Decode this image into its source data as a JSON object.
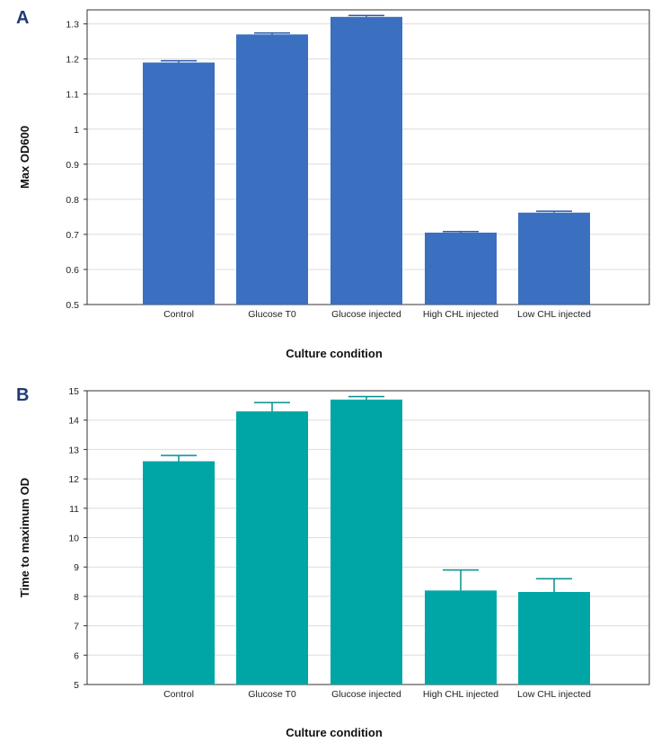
{
  "chart_data": [
    {
      "type": "bar",
      "panel": "A",
      "categories": [
        "Control",
        "Glucose T0",
        "Glucose injected",
        "High CHL injected",
        "Low CHL injected"
      ],
      "values": [
        1.19,
        1.27,
        1.32,
        0.705,
        0.762
      ],
      "errors": [
        0.005,
        0.004,
        0.004,
        0.003,
        0.004
      ],
      "title": "",
      "xlabel": "Culture condition",
      "ylabel": "Max OD600",
      "ylim": [
        0.5,
        1.34
      ],
      "yticks": [
        "0.5",
        "0.6",
        "0.7",
        "0.8",
        "0.9",
        "1",
        "1.1",
        "1.2",
        "1.3"
      ],
      "ytick_values": [
        0.5,
        0.6,
        0.7,
        0.8,
        0.9,
        1.0,
        1.1,
        1.2,
        1.3
      ],
      "grid": true,
      "bar_color": "#3b6fbf"
    },
    {
      "type": "bar",
      "panel": "B",
      "categories": [
        "Control",
        "Glucose T0",
        "Glucose injected",
        "High CHL injected",
        "Low CHL injected"
      ],
      "values": [
        12.6,
        14.3,
        14.7,
        8.2,
        8.15
      ],
      "errors": [
        0.2,
        0.3,
        0.1,
        0.7,
        0.45
      ],
      "title": "",
      "xlabel": "Culture condition",
      "ylabel": "Time to maximum OD",
      "ylim": [
        5,
        15
      ],
      "yticks": [
        "5",
        "6",
        "7",
        "8",
        "9",
        "10",
        "11",
        "12",
        "13",
        "14",
        "15"
      ],
      "ytick_values": [
        5,
        6,
        7,
        8,
        9,
        10,
        11,
        12,
        13,
        14,
        15
      ],
      "grid": true,
      "bar_color": "#00a6a6"
    }
  ]
}
